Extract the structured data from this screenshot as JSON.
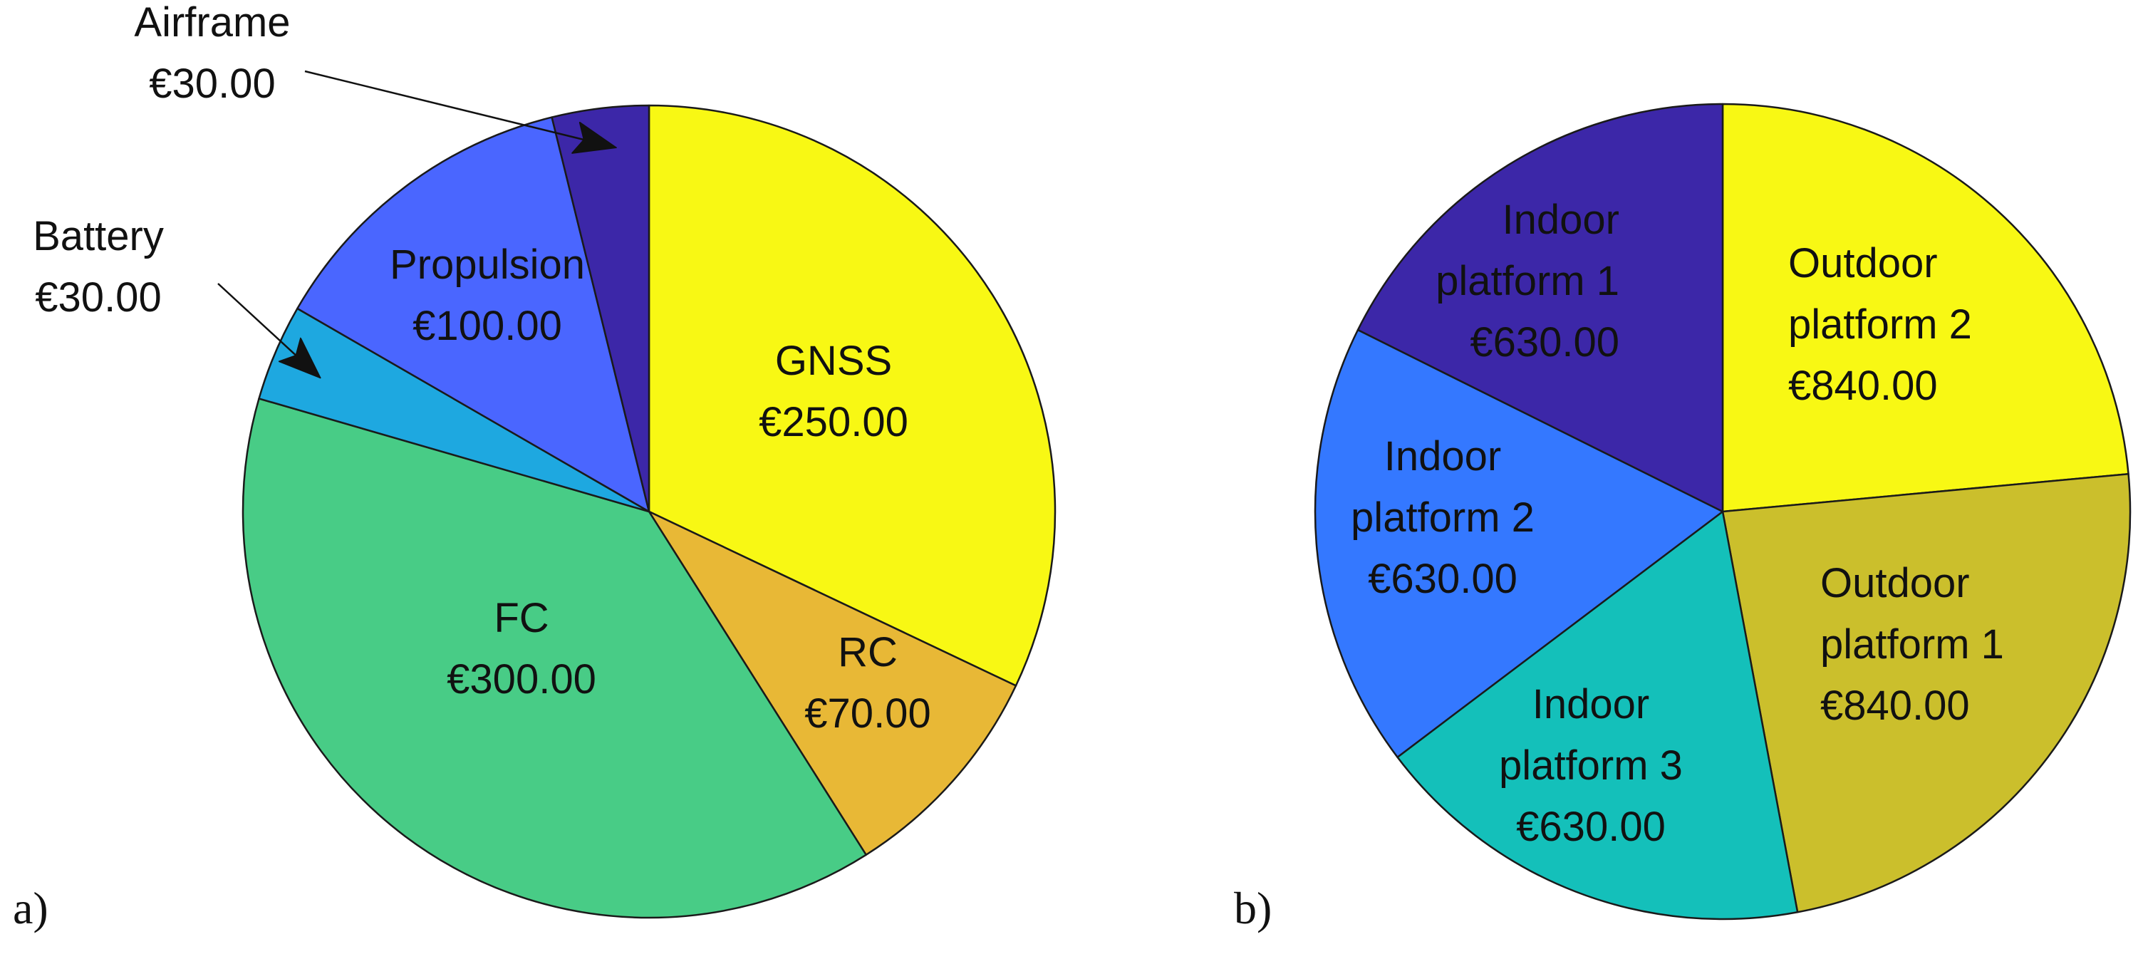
{
  "chart_data": [
    {
      "type": "pie",
      "panel_label": "a)",
      "currency": "€",
      "start_angle_deg": 90,
      "direction": "clockwise",
      "slices": [
        {
          "label": "GNSS",
          "value": 250.0,
          "value_text": "€250.00",
          "color": "#F8F814"
        },
        {
          "label": "RC",
          "value": 70.0,
          "value_text": "€70.00",
          "color": "#E8B836"
        },
        {
          "label": "FC",
          "value": 300.0,
          "value_text": "€300.00",
          "color": "#48CC86"
        },
        {
          "label": "Battery",
          "value": 30.0,
          "value_text": "€30.00",
          "color": "#1EA8E0"
        },
        {
          "label": "Propulsion",
          "value": 100.0,
          "value_text": "€100.00",
          "color": "#4A66FF"
        },
        {
          "label": "Airframe",
          "value": 30.0,
          "value_text": "€30.00",
          "color": "#3C27A8"
        }
      ]
    },
    {
      "type": "pie",
      "panel_label": "b)",
      "currency": "€",
      "start_angle_deg": 90,
      "direction": "clockwise",
      "slices": [
        {
          "label": "Outdoor platform 2",
          "label_lines": [
            "Outdoor",
            "platform 2"
          ],
          "value": 840.0,
          "value_text": "€840.00",
          "color": "#F8F814"
        },
        {
          "label": "Outdoor platform 1",
          "label_lines": [
            "Outdoor",
            "platform 1"
          ],
          "value": 840.0,
          "value_text": "€840.00",
          "color": "#CBBF2C"
        },
        {
          "label": "Indoor platform 3",
          "label_lines": [
            "Indoor",
            "platform 3"
          ],
          "value": 630.0,
          "value_text": "€630.00",
          "color": "#14C0BA"
        },
        {
          "label": "Indoor platform 2",
          "label_lines": [
            "Indoor",
            "platform 2"
          ],
          "value": 630.0,
          "value_text": "€630.00",
          "color": "#3478FF"
        },
        {
          "label": "Indoor platform 1",
          "label_lines": [
            "Indoor",
            "platform 1"
          ],
          "value": 630.0,
          "value_text": "€630.00",
          "color": "#3C27A8"
        }
      ]
    }
  ]
}
